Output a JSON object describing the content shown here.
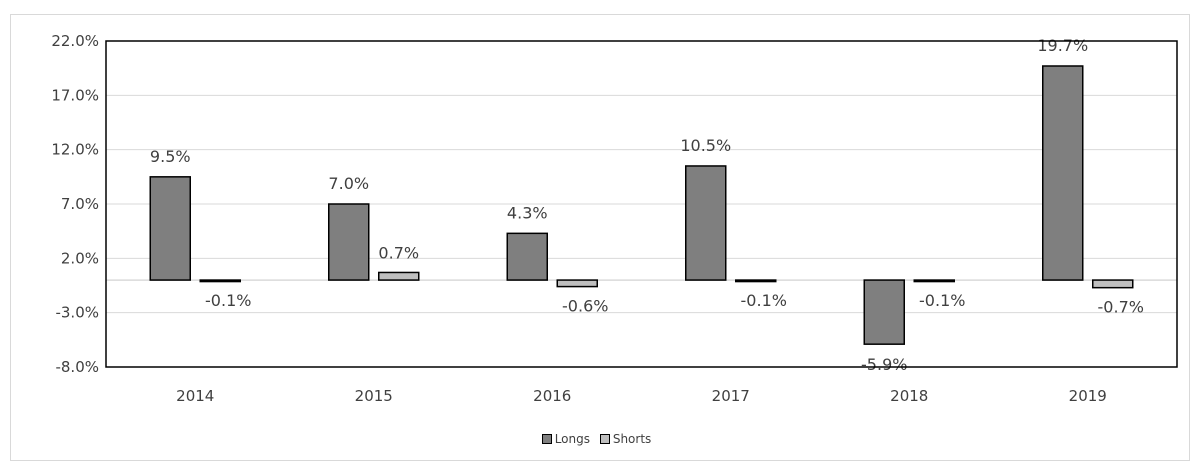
{
  "chart_data": {
    "type": "bar",
    "categories": [
      "2014",
      "2015",
      "2016",
      "2017",
      "2018",
      "2019"
    ],
    "series": [
      {
        "name": "Longs",
        "values": [
          9.5,
          7.0,
          4.3,
          10.5,
          -5.9,
          19.7
        ],
        "color": "#7f7f7f",
        "labels": [
          "9.5%",
          "7.0%",
          "4.3%",
          "10.5%",
          "-5.9%",
          "19.7%"
        ]
      },
      {
        "name": "Shorts",
        "values": [
          -0.1,
          0.7,
          -0.6,
          -0.1,
          -0.1,
          -0.7
        ],
        "color": "#bfbfbf",
        "labels": [
          "-0.1%",
          "0.7%",
          "-0.6%",
          "-0.1%",
          "-0.1%",
          "-0.7%"
        ]
      }
    ],
    "yticks": [
      22.0,
      17.0,
      12.0,
      7.0,
      2.0,
      -3.0,
      -8.0
    ],
    "ytick_labels": [
      "22.0%",
      "17.0%",
      "12.0%",
      "7.0%",
      "2.0%",
      "-3.0%",
      "-8.0%"
    ],
    "ylim": [
      -8.0,
      22.0
    ],
    "grid": true,
    "legend": "bottom-center",
    "title": "",
    "xlabel": "",
    "ylabel": ""
  }
}
